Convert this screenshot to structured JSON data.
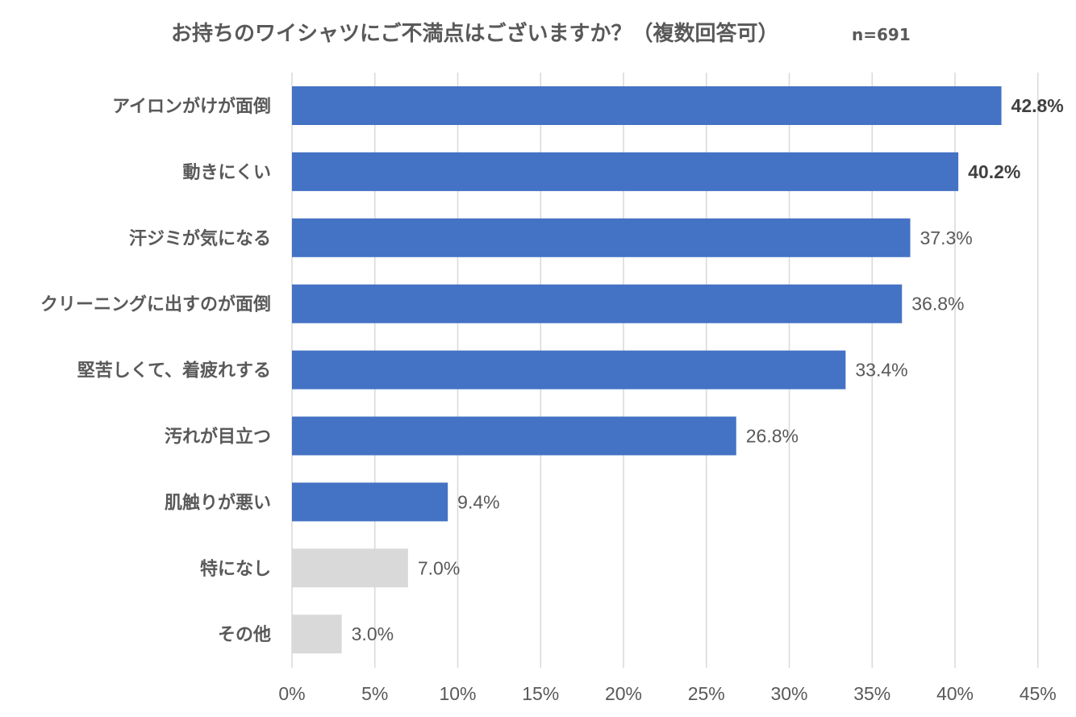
{
  "chart_data": {
    "type": "bar",
    "orientation": "horizontal",
    "title": "お持ちのワイシャツにご不満点はございますか？（複数回答可）",
    "subtitle": "n=691",
    "categories": [
      "アイロンがけが面倒",
      "動きにくい",
      "汗ジミが気になる",
      "クリーニングに出すのが面倒",
      "堅苦しくて、着疲れする",
      "汚れが目立つ",
      "肌触りが悪い",
      "特になし",
      "その他"
    ],
    "values": [
      42.8,
      40.2,
      37.3,
      36.8,
      33.4,
      26.8,
      9.4,
      7.0,
      3.0
    ],
    "value_labels": [
      "42.8%",
      "40.2%",
      "37.3%",
      "36.8%",
      "33.4%",
      "26.8%",
      "9.4%",
      "7.0%",
      "3.0%"
    ],
    "bold_value_labels": [
      true,
      true,
      false,
      false,
      false,
      false,
      false,
      false,
      false
    ],
    "bar_colors": [
      "#4472c4",
      "#4472c4",
      "#4472c4",
      "#4472c4",
      "#4472c4",
      "#4472c4",
      "#4472c4",
      "#d9d9d9",
      "#d9d9d9"
    ],
    "x_ticks": [
      0,
      5,
      10,
      15,
      20,
      25,
      30,
      35,
      40,
      45
    ],
    "x_tick_labels": [
      "0%",
      "5%",
      "10%",
      "15%",
      "20%",
      "25%",
      "30%",
      "35%",
      "40%",
      "45%"
    ],
    "xlim": [
      0,
      45
    ],
    "xlabel": "",
    "ylabel": "",
    "grid": "vertical",
    "legend": "none"
  }
}
